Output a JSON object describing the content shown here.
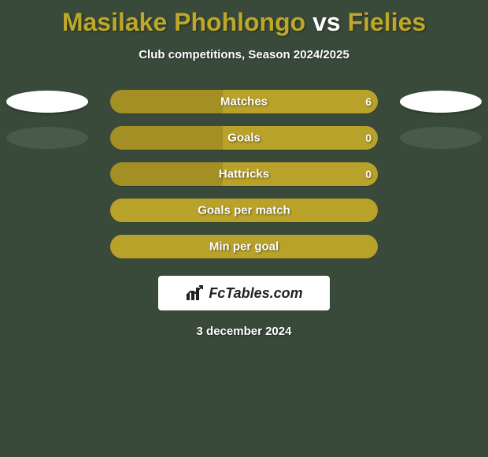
{
  "title": {
    "player1": "Masilake Phohlongo",
    "vs": "vs",
    "player2": "Fielies"
  },
  "subtitle": "Club competitions, Season 2024/2025",
  "colors": {
    "bar_left": "#a38f24",
    "bar_right": "#b9a22a",
    "bar_full": "#b9a22a",
    "background": "#3a4a3a",
    "ellipse_white": "#ffffff",
    "ellipse_dark": "#4a5a4a"
  },
  "rows": [
    {
      "label": "Matches",
      "left_pct": 42,
      "right_pct": 58,
      "value_right": "6",
      "show_ellipse": true,
      "left_ellipse": "white",
      "right_ellipse": "white"
    },
    {
      "label": "Goals",
      "left_pct": 42,
      "right_pct": 58,
      "value_right": "0",
      "show_ellipse": true,
      "left_ellipse": "dark",
      "right_ellipse": "dark"
    },
    {
      "label": "Hattricks",
      "left_pct": 42,
      "right_pct": 58,
      "value_right": "0",
      "show_ellipse": false
    },
    {
      "label": "Goals per match",
      "full": true,
      "show_ellipse": false
    },
    {
      "label": "Min per goal",
      "full": true,
      "show_ellipse": false
    }
  ],
  "logo_text": "FcTables.com",
  "date": "3 december 2024"
}
